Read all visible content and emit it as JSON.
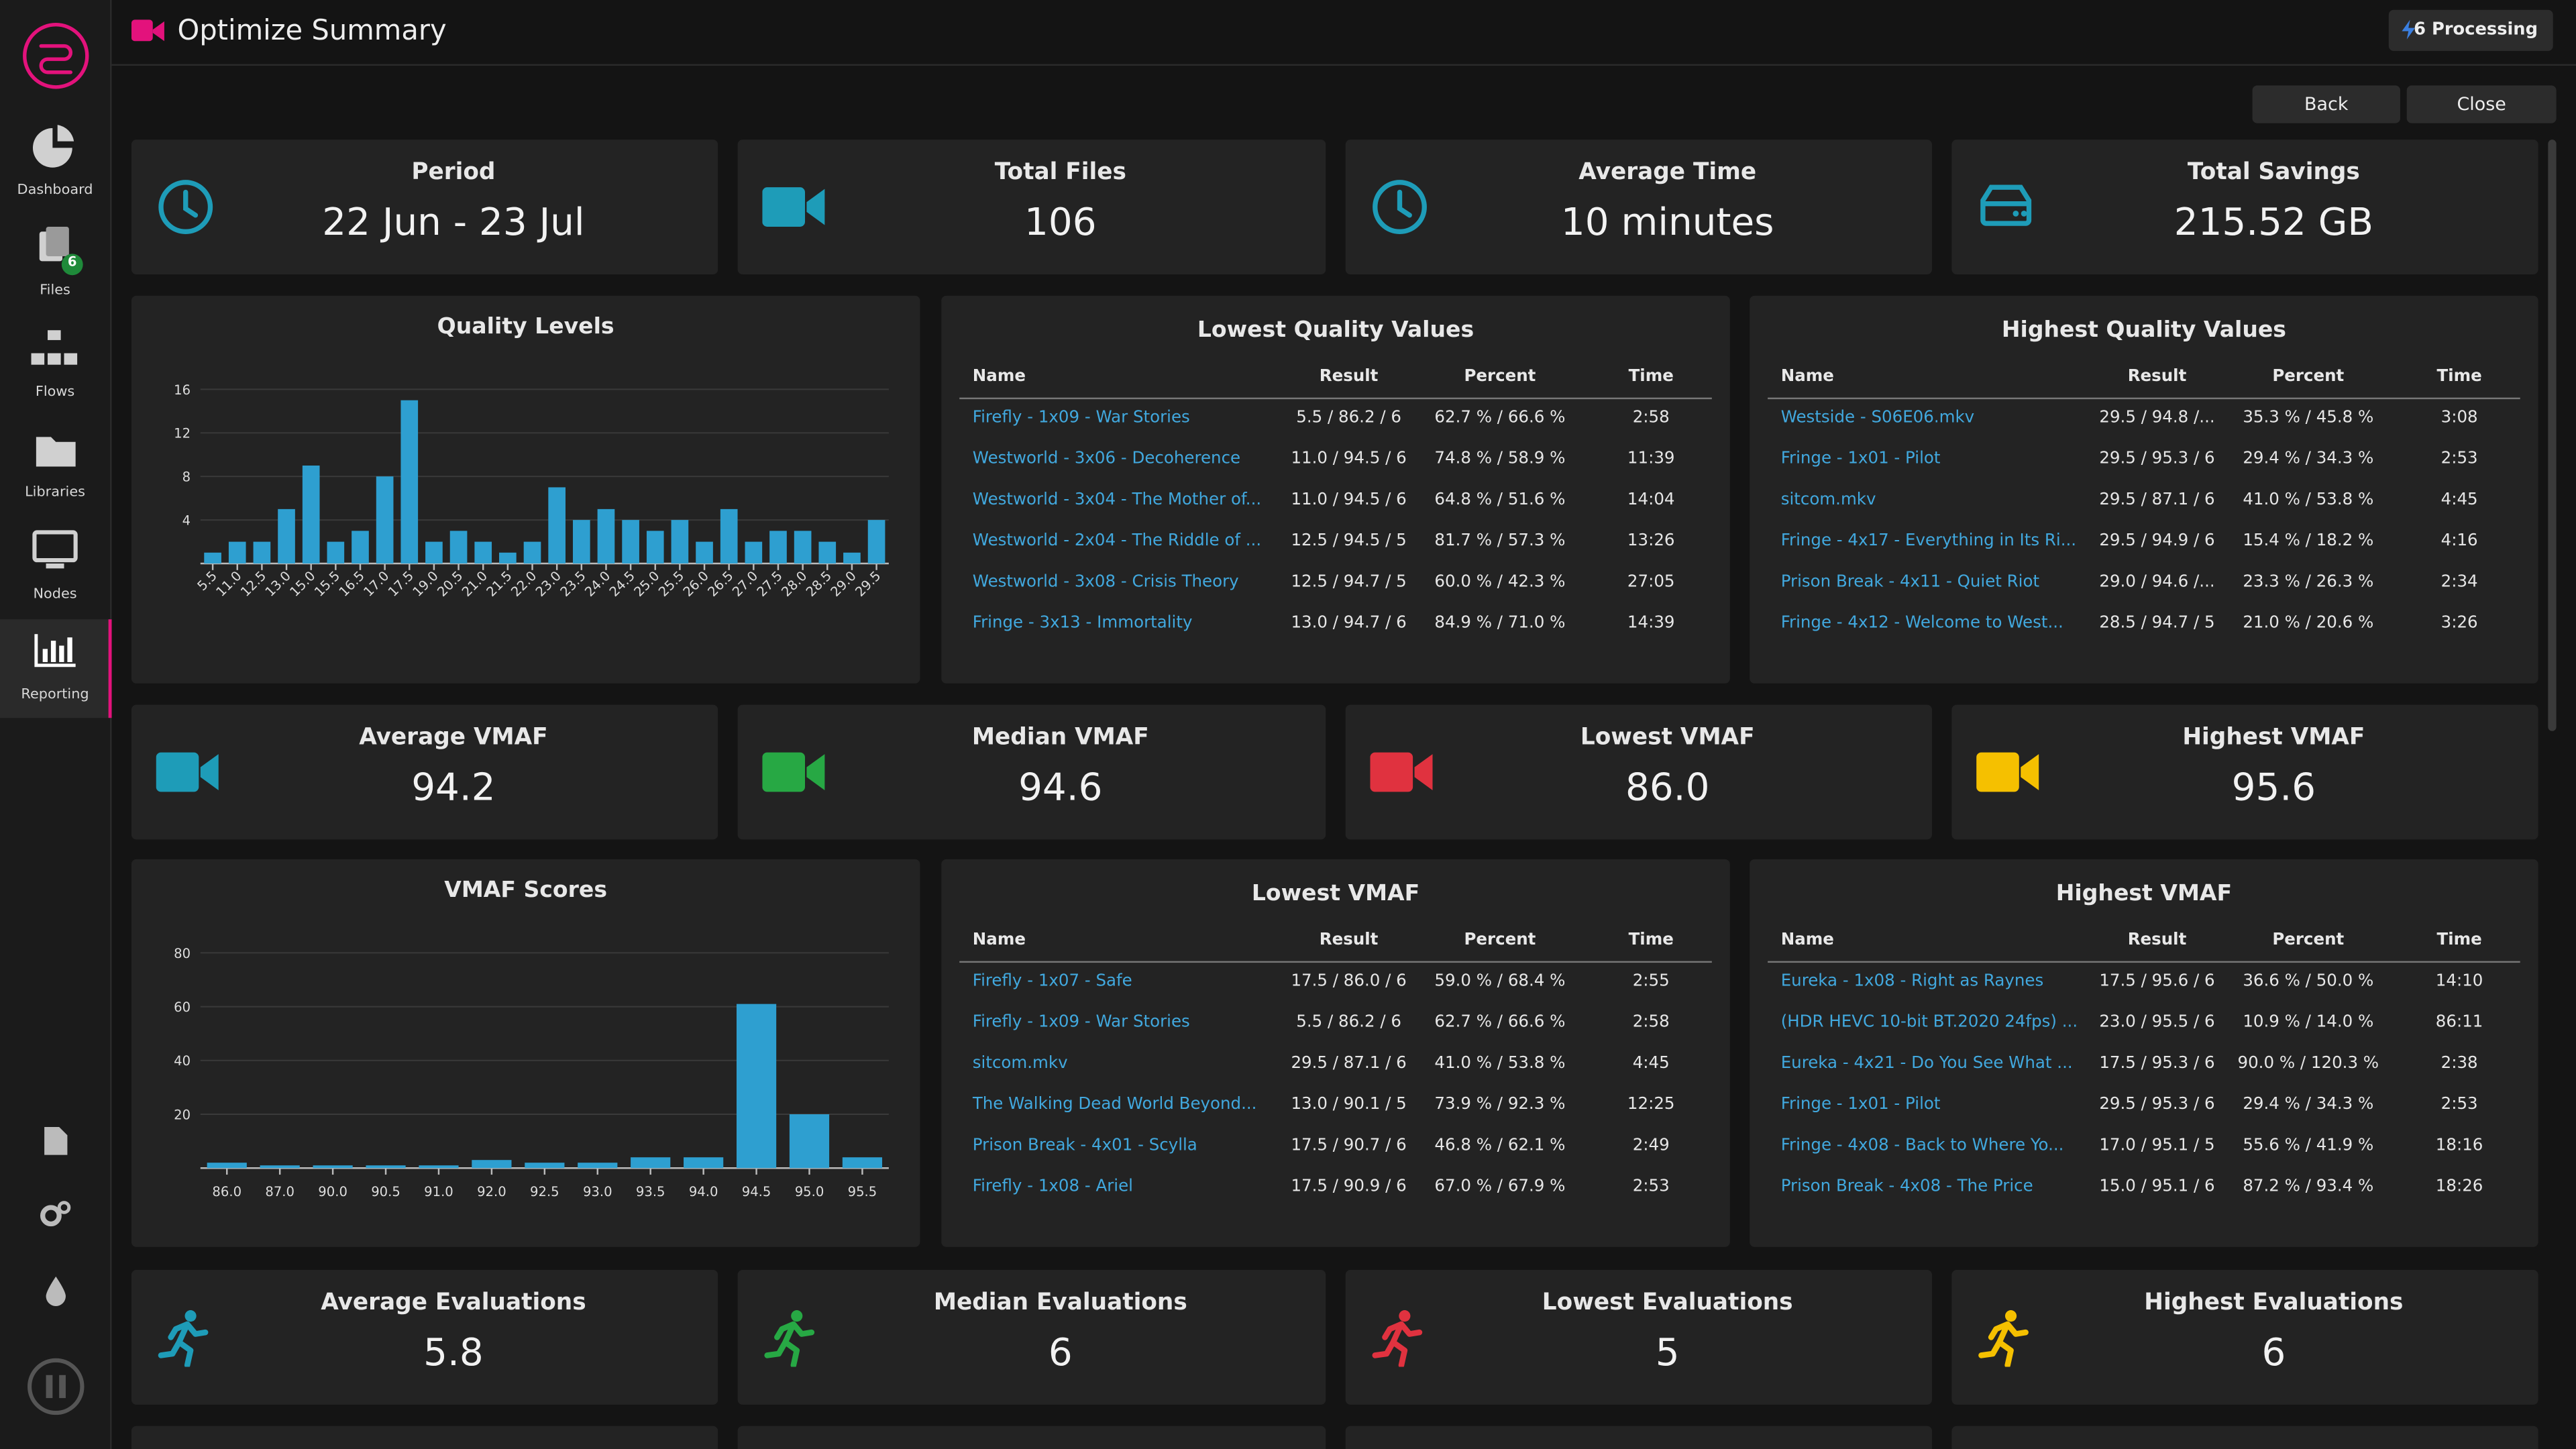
{
  "nav": {
    "items": [
      "Dashboard",
      "Files",
      "Flows",
      "Libraries",
      "Nodes",
      "Reporting"
    ],
    "files_badge": "6"
  },
  "header": {
    "title": "Optimize Summary",
    "processing": "6 Processing"
  },
  "buttons": [
    "Back",
    "Close"
  ],
  "stat_rows": [
    [
      {
        "label": "Period",
        "value": "22 Jun - 23 Jul"
      },
      {
        "label": "Total Files",
        "value": "106"
      },
      {
        "label": "Average Time",
        "value": "10 minutes"
      },
      {
        "label": "Total Savings",
        "value": "215.52 GB"
      }
    ],
    [
      {
        "label": "Average VMAF",
        "value": "94.2"
      },
      {
        "label": "Median VMAF",
        "value": "94.6"
      },
      {
        "label": "Lowest VMAF",
        "value": "86.0"
      },
      {
        "label": "Highest VMAF",
        "value": "95.6"
      }
    ],
    [
      {
        "label": "Average Evaluations",
        "value": "5.8"
      },
      {
        "label": "Median Evaluations",
        "value": "6"
      },
      {
        "label": "Lowest Evaluations",
        "value": "5"
      },
      {
        "label": "Highest Evaluations",
        "value": "6"
      }
    ]
  ],
  "tables": [
    {
      "title": "Lowest Quality Values",
      "columns": [
        "Name",
        "Result",
        "Percent",
        "Time"
      ],
      "rows": [
        [
          "Firefly - 1x09 - War Stories",
          "5.5 / 86.2 / 6",
          "62.7 % / 66.6 %",
          "2:58"
        ],
        [
          "Westworld - 3x06 - Decoherence",
          "11.0 / 94.5 / 6",
          "74.8 % / 58.9 %",
          "11:39"
        ],
        [
          "Westworld - 3x04 - The Mother of...",
          "11.0 / 94.5 / 6",
          "64.8 % / 51.6 %",
          "14:04"
        ],
        [
          "Westworld - 2x04 - The Riddle of ...",
          "12.5 / 94.5 / 5",
          "81.7 % / 57.3 %",
          "13:26"
        ],
        [
          "Westworld - 3x08 - Crisis Theory",
          "12.5 / 94.7 / 5",
          "60.0 % / 42.3 %",
          "27:05"
        ],
        [
          "Fringe - 3x13 - Immortality",
          "13.0 / 94.7 / 6",
          "84.9 % / 71.0 %",
          "14:39"
        ]
      ]
    },
    {
      "title": "Highest Quality Values",
      "columns": [
        "Name",
        "Result",
        "Percent",
        "Time"
      ],
      "rows": [
        [
          "Westside - S06E06.mkv",
          "29.5 / 94.8 /...",
          "35.3 % / 45.8 %",
          "3:08"
        ],
        [
          "Fringe - 1x01 - Pilot",
          "29.5 / 95.3 / 6",
          "29.4 % / 34.3 %",
          "2:53"
        ],
        [
          "sitcom.mkv",
          "29.5 / 87.1 / 6",
          "41.0 % / 53.8 %",
          "4:45"
        ],
        [
          "Fringe - 4x17 - Everything in Its Ri...",
          "29.5 / 94.9 / 6",
          "15.4 % / 18.2 %",
          "4:16"
        ],
        [
          "Prison Break - 4x11 - Quiet Riot",
          "29.0 / 94.6 /...",
          "23.3 % / 26.3 %",
          "2:34"
        ],
        [
          "Fringe - 4x12 - Welcome to West...",
          "28.5 / 94.7 / 5",
          "21.0 % / 20.6 %",
          "3:26"
        ]
      ]
    },
    {
      "title": "Lowest VMAF",
      "columns": [
        "Name",
        "Result",
        "Percent",
        "Time"
      ],
      "rows": [
        [
          "Firefly - 1x07 - Safe",
          "17.5 / 86.0 / 6",
          "59.0 % / 68.4 %",
          "2:55"
        ],
        [
          "Firefly - 1x09 - War Stories",
          "5.5 / 86.2 / 6",
          "62.7 % / 66.6 %",
          "2:58"
        ],
        [
          "sitcom.mkv",
          "29.5 / 87.1 / 6",
          "41.0 % / 53.8 %",
          "4:45"
        ],
        [
          "The Walking Dead World Beyond...",
          "13.0 / 90.1 / 5",
          "73.9 % / 92.3 %",
          "12:25"
        ],
        [
          "Prison Break - 4x01 - Scylla",
          "17.5 / 90.7 / 6",
          "46.8 % / 62.1 %",
          "2:49"
        ],
        [
          "Firefly - 1x08 - Ariel",
          "17.5 / 90.9 / 6",
          "67.0 % / 67.9 %",
          "2:53"
        ]
      ]
    },
    {
      "title": "Highest VMAF",
      "columns": [
        "Name",
        "Result",
        "Percent",
        "Time"
      ],
      "rows": [
        [
          "Eureka - 1x08 - Right as Raynes",
          "17.5 / 95.6 / 6",
          "36.6 % / 50.0 %",
          "14:10"
        ],
        [
          "(HDR HEVC 10-bit BT.2020 24fps) ...",
          "23.0 / 95.5 / 6",
          "10.9 % / 14.0 %",
          "86:11"
        ],
        [
          "Eureka - 4x21 - Do You See What ...",
          "17.5 / 95.3 / 6",
          "90.0 % / 120.3 %",
          "2:38"
        ],
        [
          "Fringe - 1x01 - Pilot",
          "29.5 / 95.3 / 6",
          "29.4 % / 34.3 %",
          "2:53"
        ],
        [
          "Fringe - 4x08 - Back to Where Yo...",
          "17.0 / 95.1 / 5",
          "55.6 % / 41.9 %",
          "18:16"
        ],
        [
          "Prison Break - 4x08 - The Price",
          "15.0 / 95.1 / 6",
          "87.2 % / 93.4 %",
          "18:26"
        ]
      ]
    }
  ],
  "chart_data": [
    {
      "type": "bar",
      "title": "Quality Levels",
      "categories": [
        "5.5",
        "11.0",
        "12.5",
        "13.0",
        "15.0",
        "15.5",
        "16.5",
        "17.0",
        "17.5",
        "19.0",
        "20.5",
        "21.0",
        "21.5",
        "22.0",
        "23.0",
        "23.5",
        "24.0",
        "24.5",
        "25.0",
        "25.5",
        "26.0",
        "26.5",
        "27.0",
        "27.5",
        "28.0",
        "28.5",
        "29.0",
        "29.5"
      ],
      "values": [
        1,
        2,
        2,
        5,
        9,
        2,
        3,
        8,
        15,
        2,
        3,
        2,
        1,
        2,
        7,
        4,
        5,
        4,
        3,
        4,
        2,
        5,
        2,
        3,
        3,
        2,
        1,
        4
      ],
      "color": "#2e9fd0",
      "ylim": [
        0,
        16
      ],
      "yticks": [
        4,
        8,
        12,
        16
      ],
      "grid": true
    },
    {
      "type": "bar",
      "title": "VMAF Scores",
      "categories": [
        "86.0",
        "87.0",
        "90.0",
        "90.5",
        "91.0",
        "92.0",
        "92.5",
        "93.0",
        "93.5",
        "94.0",
        "94.5",
        "95.0",
        "95.5"
      ],
      "values": [
        2,
        1,
        1,
        1,
        1,
        3,
        2,
        2,
        4,
        4,
        61,
        20,
        4
      ],
      "color": "#2e9fd0",
      "ylim": [
        0,
        80
      ],
      "yticks": [
        20,
        40,
        60,
        80
      ],
      "grid": true
    }
  ]
}
